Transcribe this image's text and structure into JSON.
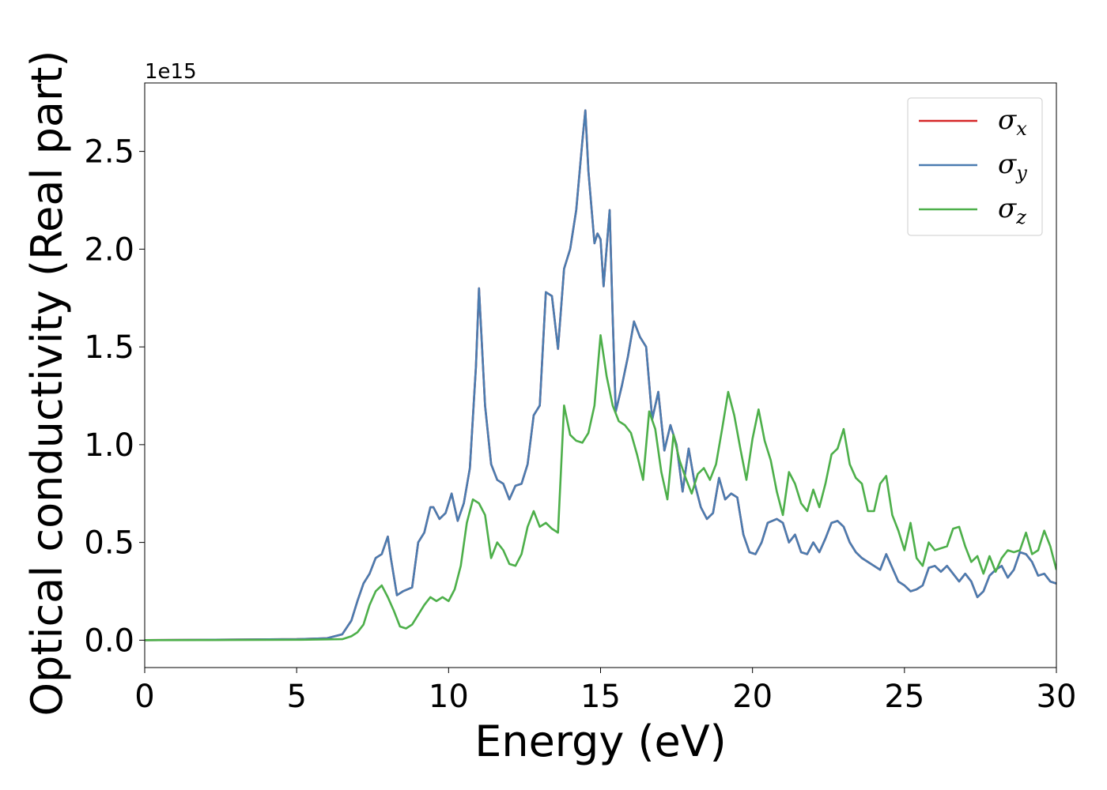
{
  "chart_data": {
    "type": "line",
    "title": "",
    "xlabel": "Energy (eV)",
    "ylabel": "Optical conductivity (Real part)",
    "y_offset_text": "1e15",
    "xlim": [
      0,
      30
    ],
    "ylim": [
      -0.14,
      2.85
    ],
    "xticks": [
      0,
      5,
      10,
      15,
      20,
      25,
      30
    ],
    "xtick_labels": [
      "0",
      "5",
      "10",
      "15",
      "20",
      "25",
      "30"
    ],
    "yticks": [
      0.0,
      0.5,
      1.0,
      1.5,
      2.0,
      2.5
    ],
    "ytick_labels": [
      "0.0",
      "0.5",
      "1.0",
      "1.5",
      "2.0",
      "2.5"
    ],
    "grid": false,
    "legend_position": "top-right",
    "series": [
      {
        "name": "σx",
        "name_base": "σ",
        "name_sub": "x",
        "color": "#d62728",
        "x": [
          0,
          5,
          6,
          6.5,
          6.8,
          7.0,
          7.2,
          7.4,
          7.6,
          7.8,
          8.0,
          8.1,
          8.3,
          8.5,
          8.8,
          9.0,
          9.2,
          9.4,
          9.5,
          9.7,
          9.9,
          10.1,
          10.3,
          10.5,
          10.7,
          10.9,
          11.0,
          11.2,
          11.4,
          11.6,
          11.8,
          12.0,
          12.2,
          12.4,
          12.6,
          12.8,
          13.0,
          13.2,
          13.4,
          13.6,
          13.8,
          14.0,
          14.2,
          14.4,
          14.5,
          14.6,
          14.8,
          14.9,
          15.0,
          15.1,
          15.3,
          15.4,
          15.5,
          15.7,
          15.9,
          16.1,
          16.3,
          16.5,
          16.7,
          16.9,
          17.1,
          17.3,
          17.5,
          17.7,
          17.9,
          18.1,
          18.3,
          18.5,
          18.7,
          18.9,
          19.1,
          19.3,
          19.5,
          19.7,
          19.9,
          20.1,
          20.3,
          20.5,
          20.8,
          21.0,
          21.2,
          21.4,
          21.6,
          21.8,
          22.0,
          22.2,
          22.4,
          22.6,
          22.8,
          23.0,
          23.2,
          23.4,
          23.6,
          23.8,
          24.0,
          24.2,
          24.4,
          24.6,
          24.8,
          25.0,
          25.2,
          25.4,
          25.6,
          25.8,
          26.0,
          26.2,
          26.4,
          26.6,
          26.8,
          27.0,
          27.2,
          27.4,
          27.6,
          27.8,
          28.0,
          28.2,
          28.4,
          28.6,
          28.8,
          29.0,
          29.2,
          29.4,
          29.6,
          29.8,
          30.0
        ],
        "y": [
          0.0,
          0.005,
          0.01,
          0.03,
          0.1,
          0.2,
          0.29,
          0.34,
          0.42,
          0.44,
          0.53,
          0.42,
          0.23,
          0.25,
          0.27,
          0.5,
          0.55,
          0.68,
          0.68,
          0.62,
          0.65,
          0.75,
          0.61,
          0.7,
          0.88,
          1.4,
          1.8,
          1.2,
          0.9,
          0.82,
          0.8,
          0.72,
          0.79,
          0.8,
          0.9,
          1.15,
          1.2,
          1.78,
          1.76,
          1.49,
          1.9,
          2.0,
          2.2,
          2.55,
          2.71,
          2.4,
          2.03,
          2.08,
          2.05,
          1.81,
          2.2,
          1.65,
          1.17,
          1.3,
          1.45,
          1.63,
          1.55,
          1.5,
          1.13,
          1.27,
          0.97,
          1.1,
          1.0,
          0.76,
          0.98,
          0.8,
          0.68,
          0.62,
          0.65,
          0.83,
          0.72,
          0.75,
          0.73,
          0.54,
          0.45,
          0.44,
          0.5,
          0.6,
          0.62,
          0.6,
          0.5,
          0.54,
          0.45,
          0.44,
          0.5,
          0.45,
          0.52,
          0.6,
          0.61,
          0.58,
          0.5,
          0.45,
          0.42,
          0.4,
          0.38,
          0.36,
          0.44,
          0.37,
          0.3,
          0.28,
          0.25,
          0.26,
          0.28,
          0.37,
          0.38,
          0.35,
          0.38,
          0.34,
          0.3,
          0.34,
          0.3,
          0.22,
          0.25,
          0.33,
          0.36,
          0.38,
          0.32,
          0.36,
          0.45,
          0.44,
          0.4,
          0.33,
          0.34,
          0.3,
          0.29
        ]
      },
      {
        "name": "σy",
        "name_base": "σ",
        "name_sub": "y",
        "color": "#4a7cb0",
        "x": [
          0,
          5,
          6,
          6.5,
          6.8,
          7.0,
          7.2,
          7.4,
          7.6,
          7.8,
          8.0,
          8.1,
          8.3,
          8.5,
          8.8,
          9.0,
          9.2,
          9.4,
          9.5,
          9.7,
          9.9,
          10.1,
          10.3,
          10.5,
          10.7,
          10.9,
          11.0,
          11.2,
          11.4,
          11.6,
          11.8,
          12.0,
          12.2,
          12.4,
          12.6,
          12.8,
          13.0,
          13.2,
          13.4,
          13.6,
          13.8,
          14.0,
          14.2,
          14.4,
          14.5,
          14.6,
          14.8,
          14.9,
          15.0,
          15.1,
          15.3,
          15.4,
          15.5,
          15.7,
          15.9,
          16.1,
          16.3,
          16.5,
          16.7,
          16.9,
          17.1,
          17.3,
          17.5,
          17.7,
          17.9,
          18.1,
          18.3,
          18.5,
          18.7,
          18.9,
          19.1,
          19.3,
          19.5,
          19.7,
          19.9,
          20.1,
          20.3,
          20.5,
          20.8,
          21.0,
          21.2,
          21.4,
          21.6,
          21.8,
          22.0,
          22.2,
          22.4,
          22.6,
          22.8,
          23.0,
          23.2,
          23.4,
          23.6,
          23.8,
          24.0,
          24.2,
          24.4,
          24.6,
          24.8,
          25.0,
          25.2,
          25.4,
          25.6,
          25.8,
          26.0,
          26.2,
          26.4,
          26.6,
          26.8,
          27.0,
          27.2,
          27.4,
          27.6,
          27.8,
          28.0,
          28.2,
          28.4,
          28.6,
          28.8,
          29.0,
          29.2,
          29.4,
          29.6,
          29.8,
          30.0
        ],
        "y": [
          0.0,
          0.005,
          0.01,
          0.03,
          0.1,
          0.2,
          0.29,
          0.34,
          0.42,
          0.44,
          0.53,
          0.42,
          0.23,
          0.25,
          0.27,
          0.5,
          0.55,
          0.68,
          0.68,
          0.62,
          0.65,
          0.75,
          0.61,
          0.7,
          0.88,
          1.4,
          1.8,
          1.2,
          0.9,
          0.82,
          0.8,
          0.72,
          0.79,
          0.8,
          0.9,
          1.15,
          1.2,
          1.78,
          1.76,
          1.49,
          1.9,
          2.0,
          2.2,
          2.55,
          2.71,
          2.4,
          2.03,
          2.08,
          2.05,
          1.81,
          2.2,
          1.65,
          1.17,
          1.3,
          1.45,
          1.63,
          1.55,
          1.5,
          1.13,
          1.27,
          0.97,
          1.1,
          1.0,
          0.76,
          0.98,
          0.8,
          0.68,
          0.62,
          0.65,
          0.83,
          0.72,
          0.75,
          0.73,
          0.54,
          0.45,
          0.44,
          0.5,
          0.6,
          0.62,
          0.6,
          0.5,
          0.54,
          0.45,
          0.44,
          0.5,
          0.45,
          0.52,
          0.6,
          0.61,
          0.58,
          0.5,
          0.45,
          0.42,
          0.4,
          0.38,
          0.36,
          0.44,
          0.37,
          0.3,
          0.28,
          0.25,
          0.26,
          0.28,
          0.37,
          0.38,
          0.35,
          0.38,
          0.34,
          0.3,
          0.34,
          0.3,
          0.22,
          0.25,
          0.33,
          0.36,
          0.38,
          0.32,
          0.36,
          0.45,
          0.44,
          0.4,
          0.33,
          0.34,
          0.3,
          0.29
        ]
      },
      {
        "name": "σz",
        "name_base": "σ",
        "name_sub": "z",
        "color": "#4daf4a",
        "x": [
          0,
          5,
          6.5,
          6.8,
          7.0,
          7.2,
          7.4,
          7.6,
          7.8,
          8.0,
          8.2,
          8.4,
          8.6,
          8.8,
          9.0,
          9.2,
          9.4,
          9.6,
          9.8,
          10.0,
          10.2,
          10.4,
          10.6,
          10.8,
          11.0,
          11.2,
          11.4,
          11.6,
          11.8,
          12.0,
          12.2,
          12.4,
          12.6,
          12.8,
          13.0,
          13.2,
          13.4,
          13.6,
          13.8,
          14.0,
          14.2,
          14.4,
          14.6,
          14.8,
          15.0,
          15.2,
          15.4,
          15.6,
          15.8,
          16.0,
          16.2,
          16.4,
          16.6,
          16.8,
          17.0,
          17.2,
          17.4,
          17.6,
          17.8,
          18.0,
          18.2,
          18.4,
          18.6,
          18.8,
          19.0,
          19.2,
          19.4,
          19.6,
          19.8,
          20.0,
          20.2,
          20.4,
          20.6,
          20.8,
          21.0,
          21.2,
          21.4,
          21.6,
          21.8,
          22.0,
          22.2,
          22.4,
          22.6,
          22.8,
          23.0,
          23.2,
          23.4,
          23.6,
          23.8,
          24.0,
          24.2,
          24.4,
          24.6,
          24.8,
          25.0,
          25.2,
          25.4,
          25.6,
          25.8,
          26.0,
          26.2,
          26.4,
          26.6,
          26.8,
          27.0,
          27.2,
          27.4,
          27.6,
          27.8,
          28.0,
          28.2,
          28.4,
          28.6,
          28.8,
          29.0,
          29.2,
          29.4,
          29.6,
          29.8,
          30.0
        ],
        "y": [
          0.0,
          0.002,
          0.005,
          0.02,
          0.04,
          0.08,
          0.18,
          0.25,
          0.28,
          0.22,
          0.15,
          0.07,
          0.06,
          0.08,
          0.13,
          0.18,
          0.22,
          0.2,
          0.22,
          0.2,
          0.26,
          0.38,
          0.6,
          0.72,
          0.7,
          0.64,
          0.42,
          0.5,
          0.46,
          0.39,
          0.38,
          0.44,
          0.58,
          0.66,
          0.58,
          0.6,
          0.57,
          0.55,
          1.2,
          1.05,
          1.02,
          1.01,
          1.06,
          1.2,
          1.56,
          1.35,
          1.2,
          1.12,
          1.1,
          1.06,
          0.95,
          0.82,
          1.17,
          1.08,
          0.86,
          0.72,
          1.05,
          0.92,
          0.83,
          0.75,
          0.85,
          0.88,
          0.82,
          0.9,
          1.08,
          1.27,
          1.15,
          0.98,
          0.82,
          1.03,
          1.18,
          1.02,
          0.92,
          0.76,
          0.64,
          0.86,
          0.8,
          0.7,
          0.66,
          0.77,
          0.68,
          0.8,
          0.95,
          0.98,
          1.08,
          0.9,
          0.83,
          0.8,
          0.66,
          0.66,
          0.8,
          0.84,
          0.64,
          0.56,
          0.46,
          0.6,
          0.42,
          0.38,
          0.5,
          0.46,
          0.47,
          0.48,
          0.57,
          0.58,
          0.48,
          0.4,
          0.43,
          0.34,
          0.43,
          0.35,
          0.42,
          0.46,
          0.45,
          0.46,
          0.55,
          0.44,
          0.46,
          0.56,
          0.48,
          0.36
        ]
      }
    ]
  }
}
